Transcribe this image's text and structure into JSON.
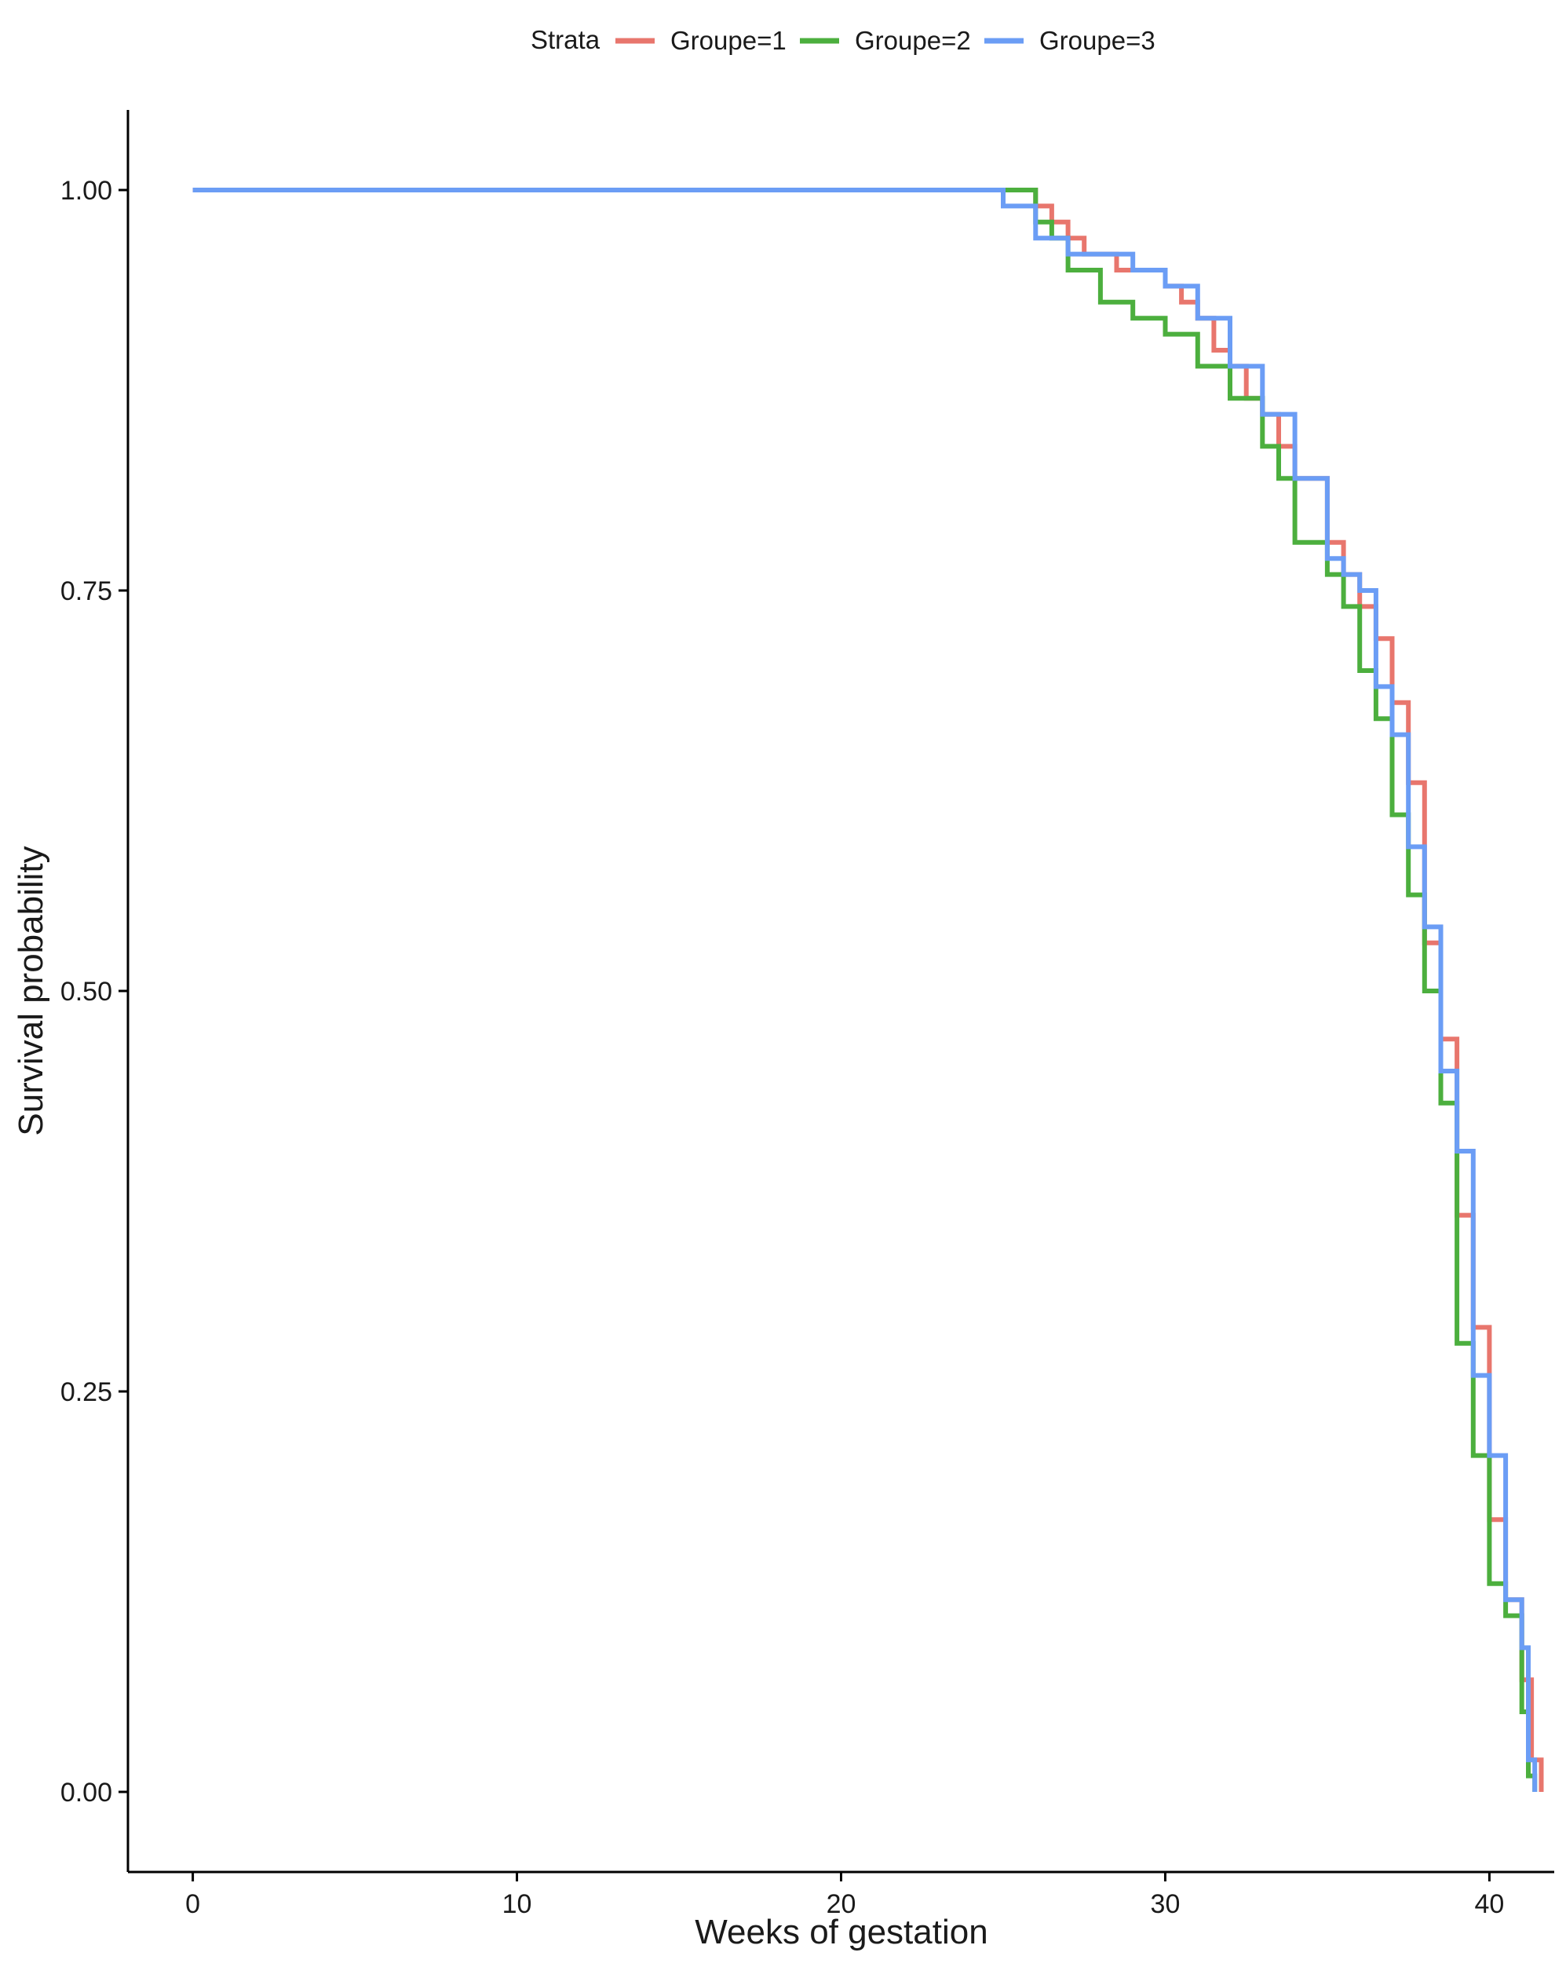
{
  "chart_data": {
    "type": "line",
    "subtype": "step",
    "title": "",
    "xlabel": "Weeks of gestation",
    "ylabel": "Survival probability",
    "xlim": [
      -2,
      42
    ],
    "ylim": [
      -0.05,
      1.05
    ],
    "x_ticks": [
      0,
      10,
      20,
      30,
      40
    ],
    "x_tick_labels": [
      "0",
      "10",
      "20",
      "30",
      "40"
    ],
    "y_ticks": [
      0,
      0.25,
      0.5,
      0.75,
      1
    ],
    "y_tick_labels": [
      "0.00",
      "0.25",
      "0.50",
      "0.75",
      "1.00"
    ],
    "grid": false,
    "legend": {
      "title": "Strata",
      "position": "top"
    },
    "series": [
      {
        "name": "Groupe=1",
        "color": "#e8766d",
        "x": [
          0,
          26.0,
          26.5,
          27.0,
          27.5,
          28.0,
          28.5,
          29.0,
          30.0,
          30.5,
          31.0,
          31.5,
          32.0,
          32.5,
          33.0,
          33.5,
          34.0,
          35.0,
          35.5,
          36.0,
          36.5,
          37.0,
          37.5,
          38.0,
          38.5,
          39.0,
          39.5,
          40.0,
          40.5,
          41.0,
          41.3,
          41.6
        ],
        "y": [
          1.0,
          0.99,
          0.98,
          0.97,
          0.96,
          0.96,
          0.95,
          0.95,
          0.94,
          0.93,
          0.92,
          0.9,
          0.89,
          0.87,
          0.86,
          0.84,
          0.82,
          0.78,
          0.76,
          0.74,
          0.72,
          0.68,
          0.63,
          0.53,
          0.47,
          0.36,
          0.29,
          0.17,
          0.12,
          0.07,
          0.02,
          0.0
        ]
      },
      {
        "name": "Groupe=2",
        "color": "#4caf3e",
        "x": [
          24.0,
          26.0,
          26.5,
          27.0,
          28.0,
          29.0,
          30.0,
          31.0,
          32.0,
          33.0,
          33.5,
          34.0,
          35.0,
          35.5,
          36.0,
          36.5,
          37.0,
          37.5,
          38.0,
          38.5,
          39.0,
          39.5,
          40.0,
          40.5,
          41.0,
          41.2,
          41.4
        ],
        "y": [
          1.0,
          0.98,
          0.97,
          0.95,
          0.93,
          0.92,
          0.91,
          0.89,
          0.87,
          0.84,
          0.82,
          0.78,
          0.76,
          0.74,
          0.7,
          0.67,
          0.61,
          0.56,
          0.5,
          0.43,
          0.28,
          0.21,
          0.13,
          0.11,
          0.05,
          0.01,
          0.0
        ]
      },
      {
        "name": "Groupe=3",
        "color": "#6b9df5",
        "x": [
          0,
          24.0,
          25.0,
          26.0,
          27.0,
          28.0,
          29.0,
          30.0,
          31.0,
          32.0,
          33.0,
          34.0,
          35.0,
          35.5,
          36.0,
          36.5,
          37.0,
          37.5,
          38.0,
          38.5,
          39.0,
          39.5,
          40.0,
          40.5,
          41.0,
          41.2,
          41.4
        ],
        "y": [
          1.0,
          1.0,
          0.99,
          0.97,
          0.96,
          0.96,
          0.95,
          0.94,
          0.92,
          0.89,
          0.86,
          0.82,
          0.77,
          0.76,
          0.75,
          0.69,
          0.66,
          0.59,
          0.54,
          0.45,
          0.4,
          0.26,
          0.21,
          0.12,
          0.09,
          0.02,
          0.0
        ]
      }
    ]
  }
}
